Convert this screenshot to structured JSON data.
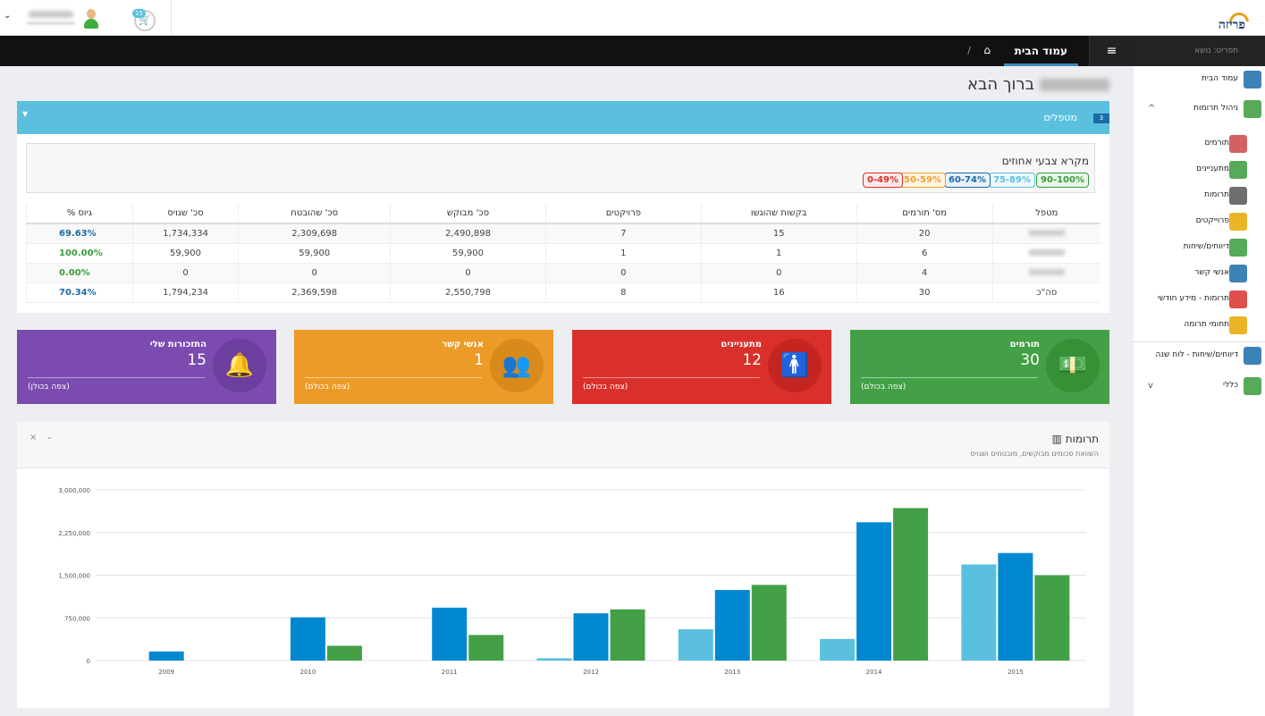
{
  "topbar": {
    "logo_text": "פריזה",
    "cart_count": "15",
    "cart_icon": "cart-icon",
    "user_caret": "⌄"
  },
  "navbar": {
    "menu_icon": "≡",
    "home_label": "עמוד הבית",
    "separator": "/"
  },
  "sidebar": {
    "search_placeholder": "תפריט: נושא",
    "items": [
      {
        "label": "עמוד הבית",
        "icon": "home-icon"
      },
      {
        "label": "ניהול תרומות",
        "icon": "money-icon",
        "expandable": true
      },
      {
        "label": "תורמים",
        "icon": "donors-icon",
        "sub": true
      },
      {
        "label": "מתעניינים",
        "icon": "interested-icon",
        "sub": true
      },
      {
        "label": "תרומות",
        "icon": "donations-icon",
        "sub": true
      },
      {
        "label": "פרוייקטים",
        "icon": "projects-icon",
        "sub": true
      },
      {
        "label": "דיווחים/שיחות",
        "icon": "chat-icon",
        "sub": true
      },
      {
        "label": "אנשי קשר",
        "icon": "contacts-icon",
        "sub": true
      },
      {
        "label": "תרומות - מידע חודשי",
        "icon": "pie-icon",
        "sub": true
      },
      {
        "label": "תחומי תרומה",
        "icon": "bars-icon",
        "sub": true
      },
      {
        "label": "דיווחים/שיחות - לוח שנה",
        "icon": "calendar-icon"
      },
      {
        "label": "כללי",
        "icon": "general-icon",
        "expandable": true
      }
    ]
  },
  "welcome": {
    "text": "ברוך הבא"
  },
  "handlers_panel": {
    "title": "מטפלים",
    "count": "3",
    "legend_title": "מקרא צבעי אחוזים",
    "legend": [
      {
        "label": "90-100%",
        "color": "#3a9b3a",
        "bg": "#eaf6ea"
      },
      {
        "label": "75-89%",
        "color": "#5bc0de",
        "bg": "#eef8fb"
      },
      {
        "label": "60-74%",
        "color": "#1b6ca8",
        "bg": "#e8f1f8"
      },
      {
        "label": "50-59%",
        "color": "#f0a030",
        "bg": "#fdf4e6"
      },
      {
        "label": "0-49%",
        "color": "#d9302b",
        "bg": "#fbeaea"
      }
    ],
    "columns": [
      "מטפל",
      "מס' תורמים",
      "בקשות שהוגשו",
      "פרויקטים",
      "סכ' מבוקש",
      "סכ' שהובטח",
      "סכ' שגויס",
      "% גיוס"
    ],
    "rows": [
      {
        "count": "20",
        "requests": "15",
        "projects": "7",
        "requested": "2,490,898",
        "promised": "2,309,698",
        "raised": "1,734,334",
        "pct": "69.63%",
        "pct_color": "#1b6ca8"
      },
      {
        "count": "6",
        "requests": "1",
        "projects": "1",
        "requested": "59,900",
        "promised": "59,900",
        "raised": "59,900",
        "pct": "100.00%",
        "pct_color": "#3a9b3a"
      },
      {
        "count": "4",
        "requests": "0",
        "projects": "0",
        "requested": "0",
        "promised": "0",
        "raised": "0",
        "pct": "0.00%",
        "pct_color": "#3a9b3a"
      }
    ],
    "total": {
      "label": "סה\"כ",
      "count": "30",
      "requests": "16",
      "projects": "8",
      "requested": "2,550,798",
      "promised": "2,369,598",
      "raised": "1,794,234",
      "pct": "70.34%",
      "pct_color": "#1b6ca8"
    }
  },
  "stat_boxes": [
    {
      "label": "תורמים",
      "value": "30",
      "more": "(צפה בכולם)",
      "color": "#43a047",
      "circle": "#369136",
      "icon": "money-icon",
      "glyph": "💵"
    },
    {
      "label": "מתעניינים",
      "value": "12",
      "more": "(צפה בכולם)",
      "color": "#d9302b",
      "circle": "#c42520",
      "icon": "person-icon",
      "glyph": "🚹"
    },
    {
      "label": "אנשי קשר",
      "value": "1",
      "more": "(צפה בכולם)",
      "color": "#ec9b29",
      "circle": "#d98a1c",
      "icon": "group-icon",
      "glyph": "👥"
    },
    {
      "label": "התזכורות שלי",
      "value": "15",
      "more": "(צפה בכולן)",
      "color": "#7b4bb0",
      "circle": "#6b3ea0",
      "icon": "bell-icon",
      "glyph": "🔔"
    }
  ],
  "chart_panel": {
    "title": "תרומות",
    "subtitle": "השוואת סכומים מבוקשים, מובטחים ושגויס",
    "close": "×",
    "collapse": "⌄"
  },
  "chart_data": {
    "type": "bar",
    "categories": [
      "2009",
      "2010",
      "2011",
      "2012",
      "2013",
      "2014",
      "2015"
    ],
    "series": [
      {
        "color": "#5bc0de",
        "values": [
          0,
          0,
          0,
          40000,
          550000,
          380000,
          1690000
        ]
      },
      {
        "color": "#0288d1",
        "values": [
          160000,
          760000,
          930000,
          830000,
          1240000,
          2430000,
          1890000
        ]
      },
      {
        "color": "#43a047",
        "values": [
          0,
          260000,
          450000,
          900000,
          1330000,
          2680000,
          1500000
        ]
      }
    ],
    "yticks": [
      "0",
      "750,000",
      "1,500,000",
      "2,250,000",
      "3,000,000"
    ],
    "ylim": [
      0,
      3000000
    ],
    "grid": true
  }
}
